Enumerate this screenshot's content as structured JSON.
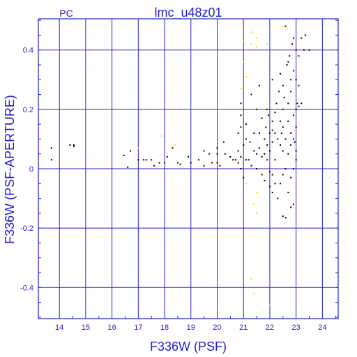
{
  "chart_data": {
    "type": "scatter",
    "title": "lmc_u48z01",
    "corner_label": "PC",
    "xlabel": "F336W (PSF)",
    "ylabel": "F336W (PSF-APERTURE)",
    "xlim": [
      13.2,
      24.6
    ],
    "ylim": [
      -0.505,
      0.505
    ],
    "x_ticks": [
      "14",
      "15",
      "16",
      "17",
      "18",
      "19",
      "20",
      "21",
      "22",
      "23",
      "24"
    ],
    "y_ticks": [
      "0.4",
      "0.2",
      "0",
      "-0.2",
      "-0.4"
    ],
    "grid": true,
    "colors": {
      "axis": "#2222cc",
      "main": "#000000",
      "secondary": "#ffd700"
    },
    "series": [
      {
        "color": "#000000",
        "points": [
          [
            13.7,
            0.07
          ],
          [
            13.7,
            0.03
          ],
          [
            14.4,
            0.08
          ],
          [
            14.55,
            0.075
          ],
          [
            14.55,
            0.08
          ],
          [
            16.45,
            0.045
          ],
          [
            16.6,
            0.005
          ],
          [
            16.7,
            0.06
          ],
          [
            17.0,
            0.03
          ],
          [
            17.2,
            0.03
          ],
          [
            17.3,
            0.03
          ],
          [
            17.5,
            0.03
          ],
          [
            17.6,
            0.01
          ],
          [
            17.8,
            0.02
          ],
          [
            18.0,
            0.02
          ],
          [
            18.1,
            0.04
          ],
          [
            18.3,
            0.07
          ],
          [
            18.5,
            0.02
          ],
          [
            18.6,
            0.015
          ],
          [
            18.9,
            0.04
          ],
          [
            19.0,
            0.02
          ],
          [
            19.3,
            0.03
          ],
          [
            19.5,
            0.06
          ],
          [
            19.5,
            0.01
          ],
          [
            19.7,
            0.05
          ],
          [
            19.8,
            0.02
          ],
          [
            20.0,
            0.07
          ],
          [
            20.0,
            0.05
          ],
          [
            20.0,
            0.02
          ],
          [
            20.1,
            0.01
          ],
          [
            20.25,
            0.09
          ],
          [
            20.3,
            0.05
          ],
          [
            20.5,
            0.04
          ],
          [
            20.6,
            0.03
          ],
          [
            20.7,
            0.03
          ],
          [
            20.8,
            0.12
          ],
          [
            20.8,
            0.06
          ],
          [
            20.8,
            0.02
          ],
          [
            20.9,
            0.22
          ],
          [
            20.9,
            0.18
          ],
          [
            20.9,
            0.14
          ],
          [
            20.9,
            0.04
          ],
          [
            20.9,
            0.0
          ],
          [
            21.0,
            0.08
          ],
          [
            21.0,
            -0.03
          ],
          [
            21.1,
            0.15
          ],
          [
            21.1,
            0.1
          ],
          [
            21.1,
            0.03
          ],
          [
            21.2,
            0.03
          ],
          [
            21.25,
            0.09
          ],
          [
            21.3,
            0.25
          ],
          [
            21.3,
            0.01
          ],
          [
            21.4,
            0.12
          ],
          [
            21.4,
            0.06
          ],
          [
            21.5,
            0.2
          ],
          [
            21.5,
            0.05
          ],
          [
            21.5,
            0.0
          ],
          [
            21.6,
            0.28
          ],
          [
            21.6,
            0.12
          ],
          [
            21.6,
            0.07
          ],
          [
            21.7,
            0.17
          ],
          [
            21.7,
            0.04
          ],
          [
            21.7,
            -0.02
          ],
          [
            21.8,
            0.1
          ],
          [
            21.8,
            0.05
          ],
          [
            21.8,
            -0.04
          ],
          [
            21.85,
            0.14
          ],
          [
            21.9,
            0.2
          ],
          [
            21.9,
            0.08
          ],
          [
            21.9,
            0.03
          ],
          [
            21.95,
            0.18
          ],
          [
            22.0,
            0.12
          ],
          [
            22.0,
            0.06
          ],
          [
            22.0,
            -0.01
          ],
          [
            22.0,
            -0.06
          ],
          [
            22.1,
            0.3
          ],
          [
            22.1,
            0.16
          ],
          [
            22.1,
            0.13
          ],
          [
            22.1,
            0.09
          ],
          [
            22.1,
            -0.02
          ],
          [
            22.1,
            -0.08
          ],
          [
            22.2,
            0.19
          ],
          [
            22.2,
            0.12
          ],
          [
            22.2,
            0.03
          ],
          [
            22.2,
            -0.05
          ],
          [
            22.25,
            0.22
          ],
          [
            22.3,
            0.1
          ],
          [
            22.3,
            -0.1
          ],
          [
            22.35,
            0.26
          ],
          [
            22.4,
            0.16
          ],
          [
            22.4,
            0.08
          ],
          [
            22.4,
            -0.05
          ],
          [
            22.45,
            0.12
          ],
          [
            22.5,
            0.28
          ],
          [
            22.5,
            0.2
          ],
          [
            22.5,
            0.14
          ],
          [
            22.5,
            0.06
          ],
          [
            22.5,
            -0.02
          ],
          [
            22.5,
            -0.16
          ],
          [
            22.55,
            0.24
          ],
          [
            22.6,
            0.1
          ],
          [
            22.6,
            0.0
          ],
          [
            22.6,
            -0.165
          ],
          [
            22.65,
            0.35
          ],
          [
            22.7,
            0.22
          ],
          [
            22.7,
            0.16
          ],
          [
            22.7,
            0.05
          ],
          [
            22.7,
            -0.08
          ],
          [
            22.75,
            0.38
          ],
          [
            22.8,
            0.3
          ],
          [
            22.8,
            0.26
          ],
          [
            22.8,
            0.12
          ],
          [
            22.8,
            0.08
          ],
          [
            22.8,
            -0.03
          ],
          [
            22.8,
            -0.13
          ],
          [
            22.85,
            0.42
          ],
          [
            22.9,
            0.33
          ],
          [
            22.9,
            0.18
          ],
          [
            22.9,
            0.1
          ],
          [
            22.9,
            0.0
          ],
          [
            22.9,
            -0.12
          ],
          [
            22.95,
            0.09
          ],
          [
            23.0,
            0.4
          ],
          [
            23.0,
            0.3
          ],
          [
            23.0,
            0.2
          ],
          [
            23.0,
            0.14
          ],
          [
            23.0,
            0.06
          ],
          [
            23.0,
            0.03
          ],
          [
            23.05,
            0.22
          ],
          [
            23.1,
            0.38
          ],
          [
            23.1,
            0.28
          ],
          [
            23.1,
            0.21
          ],
          [
            23.2,
            0.44
          ],
          [
            23.2,
            0.22
          ],
          [
            23.3,
            0.4
          ],
          [
            23.35,
            0.45
          ],
          [
            23.5,
            0.4
          ],
          [
            22.6,
            0.48
          ],
          [
            22.9,
            0.44
          ],
          [
            22.7,
            0.36
          ],
          [
            22.4,
            0.32
          ]
        ]
      },
      {
        "color": "#ffd700",
        "points": [
          [
            21.0,
            0.43
          ],
          [
            21.0,
            0.36
          ],
          [
            21.3,
            0.46
          ],
          [
            21.3,
            0.42
          ],
          [
            21.5,
            0.44
          ],
          [
            21.5,
            0.41
          ],
          [
            21.9,
            0.42
          ],
          [
            21.1,
            0.31
          ],
          [
            20.9,
            0.27
          ],
          [
            17.9,
            0.11
          ],
          [
            18.4,
            0.08
          ],
          [
            17.0,
            0.07
          ],
          [
            21.1,
            -0.05
          ],
          [
            21.5,
            -0.08
          ],
          [
            21.4,
            -0.12
          ],
          [
            21.5,
            -0.15
          ],
          [
            21.3,
            -0.37
          ],
          [
            21.4,
            -0.42
          ],
          [
            22.0,
            -0.46
          ],
          [
            22.5,
            0.48
          ]
        ]
      }
    ]
  }
}
